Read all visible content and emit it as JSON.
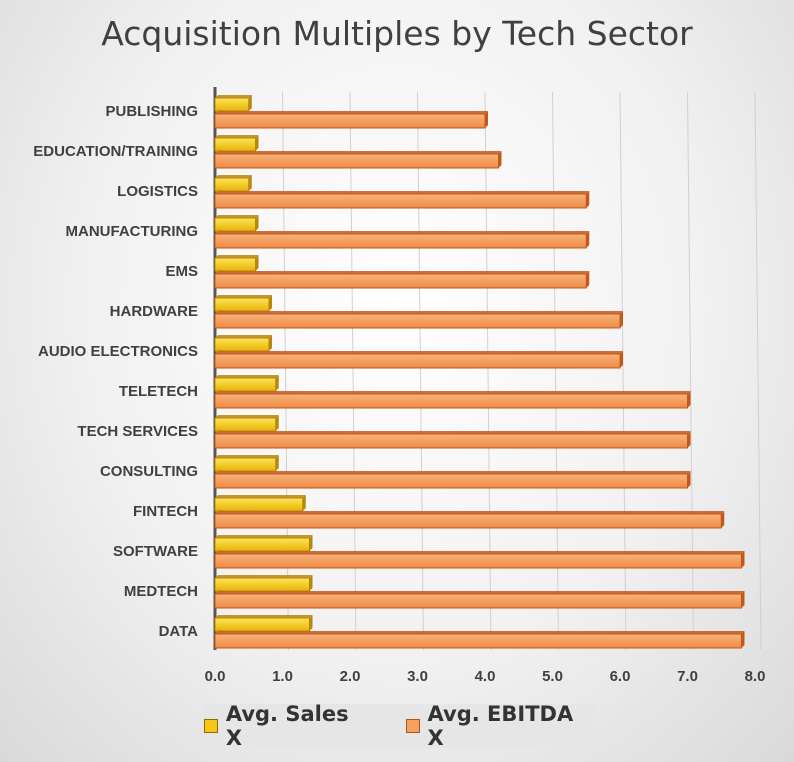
{
  "chart_data": {
    "type": "bar",
    "orientation": "horizontal",
    "title": "Acquisition Multiples by Tech Sector",
    "categories": [
      "PUBLISHING",
      "EDUCATION/TRAINING",
      "LOGISTICS",
      "MANUFACTURING",
      "EMS",
      "HARDWARE",
      "AUDIO ELECTRONICS",
      "TELETECH",
      "TECH SERVICES",
      "CONSULTING",
      "FINTECH",
      "SOFTWARE",
      "MEDTECH",
      "DATA"
    ],
    "series": [
      {
        "name": "Avg. Sales X",
        "color": "#f5c518",
        "edge": "#b8860b",
        "values": [
          0.5,
          0.6,
          0.5,
          0.6,
          0.6,
          0.8,
          0.8,
          0.9,
          0.9,
          0.9,
          1.3,
          1.4,
          1.4,
          1.4
        ]
      },
      {
        "name": "Avg. EBITDA X",
        "color": "#f4a160",
        "edge": "#c4581a",
        "values": [
          4.0,
          4.2,
          5.5,
          5.5,
          5.5,
          6.0,
          6.0,
          7.0,
          7.0,
          7.0,
          7.5,
          7.8,
          7.8,
          7.8
        ]
      }
    ],
    "xlim": [
      0,
      8
    ],
    "xticks": [
      "0.0",
      "1.0",
      "2.0",
      "3.0",
      "4.0",
      "5.0",
      "6.0",
      "7.0",
      "8.0"
    ],
    "grid": true,
    "legend": "bottom"
  }
}
